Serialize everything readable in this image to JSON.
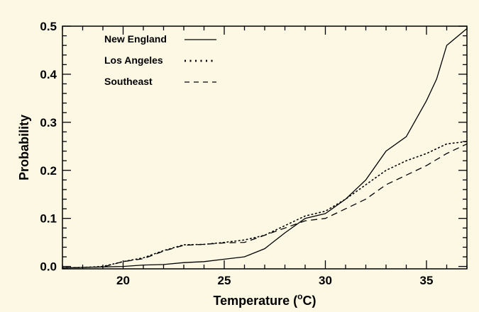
{
  "chart_data": {
    "type": "line",
    "xlabel": "Temperature (",
    "xlabel_sup": "o",
    "xlabel_unit": "C)",
    "ylabel": "Probability",
    "xlim": [
      17,
      37
    ],
    "ylim": [
      -0.005,
      0.5
    ],
    "x_ticks": [
      20,
      25,
      30,
      35
    ],
    "y_ticks": [
      0.0,
      0.1,
      0.2,
      0.3,
      0.4,
      0.5
    ],
    "y_tick_labels": [
      "0.0",
      "0.1",
      "0.2",
      "0.3",
      "0.4",
      "0.5"
    ],
    "grid": false,
    "legend_position": "top-left",
    "series": [
      {
        "name": "New England",
        "dash": "solid",
        "x": [
          17,
          18,
          19,
          20,
          21,
          22,
          23,
          24,
          25,
          26,
          27,
          28,
          29,
          30,
          31,
          32,
          33,
          34,
          35,
          35.5,
          36,
          37
        ],
        "y": [
          -0.003,
          -0.002,
          -0.001,
          0.0,
          0.003,
          0.004,
          0.008,
          0.01,
          0.015,
          0.02,
          0.037,
          0.07,
          0.1,
          0.11,
          0.14,
          0.18,
          0.24,
          0.27,
          0.345,
          0.39,
          0.46,
          0.495
        ]
      },
      {
        "name": "Los Angeles",
        "dash": "dotted",
        "x": [
          17,
          18,
          19,
          20,
          21,
          22,
          23,
          24,
          25,
          26,
          27,
          28,
          29,
          30,
          31,
          32,
          33,
          34,
          35,
          36,
          37
        ],
        "y": [
          -0.003,
          -0.002,
          0.0,
          0.01,
          0.018,
          0.033,
          0.045,
          0.046,
          0.05,
          0.055,
          0.065,
          0.085,
          0.105,
          0.115,
          0.14,
          0.17,
          0.2,
          0.22,
          0.235,
          0.255,
          0.26
        ]
      },
      {
        "name": "Southeast",
        "dash": "dashed",
        "x": [
          17,
          18,
          19,
          20,
          21,
          22,
          23,
          24,
          25,
          26,
          27,
          28,
          29,
          30,
          31,
          32,
          33,
          34,
          35,
          36,
          37
        ],
        "y": [
          -0.003,
          -0.002,
          -0.001,
          0.01,
          0.016,
          0.032,
          0.044,
          0.046,
          0.049,
          0.05,
          0.065,
          0.08,
          0.095,
          0.1,
          0.12,
          0.14,
          0.17,
          0.19,
          0.21,
          0.235,
          0.255
        ]
      }
    ]
  }
}
